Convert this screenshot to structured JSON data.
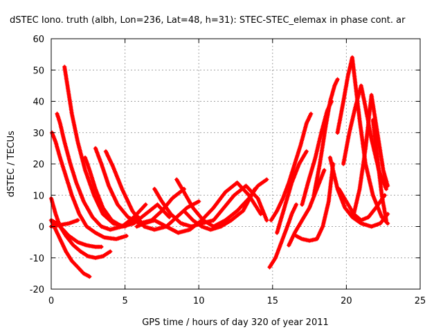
{
  "chart_data": {
    "type": "scatter",
    "title": "dSTEC Iono. truth (albh, Lon=236, Lat=48, h=31): STEC-STEC_elemax in phase cont. ar",
    "xlabel": "GPS time / hours of day 320 of year 2011",
    "ylabel": "dSTEC  / TECUs",
    "xlim": [
      0,
      25
    ],
    "ylim": [
      -20,
      60
    ],
    "xticks": [
      0,
      5,
      10,
      15,
      20,
      25
    ],
    "yticks": [
      -20,
      -10,
      0,
      10,
      20,
      30,
      40,
      50,
      60
    ],
    "grid": true,
    "marker": "+",
    "color": "#ff0000",
    "series": [
      {
        "x": [
          0.0,
          0.3,
          0.6,
          1.0,
          1.4,
          1.8,
          2.2,
          2.6
        ],
        "y": [
          2,
          -1,
          -4,
          -8,
          -11,
          -13,
          -15,
          -16
        ]
      },
      {
        "x": [
          0.0,
          0.3,
          0.6,
          1.0,
          1.5,
          2.0,
          2.5,
          3.0,
          3.5,
          4.0
        ],
        "y": [
          9,
          4,
          0,
          -3,
          -6,
          -8,
          -9.5,
          -10,
          -9.5,
          -8
        ]
      },
      {
        "x": [
          0.0,
          0.4,
          0.8,
          1.2,
          1.8,
          2.4,
          3.0,
          3.4
        ],
        "y": [
          2,
          1,
          -1,
          -3,
          -5,
          -6,
          -6.5,
          -6.5
        ]
      },
      {
        "x": [
          0.05,
          0.3,
          0.6,
          1.0,
          1.4,
          1.9,
          2.4,
          3.0,
          3.6,
          4.4,
          5.1
        ],
        "y": [
          30,
          27,
          22,
          16,
          10,
          4,
          0,
          -2,
          -3.5,
          -4,
          -3
        ]
      },
      {
        "x": [
          0.4,
          0.6,
          0.9,
          1.3,
          1.7,
          2.2,
          2.8,
          3.4,
          4.0,
          4.8,
          5.6,
          6.4
        ],
        "y": [
          36,
          33,
          27,
          20,
          14,
          8,
          3,
          0,
          -1,
          0,
          3,
          7
        ]
      },
      {
        "x": [
          0.9,
          1.1,
          1.4,
          1.8,
          2.3,
          2.9,
          3.5,
          4.2,
          5.0,
          5.9
        ],
        "y": [
          51,
          45,
          36,
          27,
          18,
          10,
          4,
          1,
          0,
          3
        ]
      },
      {
        "x": [
          2.3,
          2.6,
          3.0,
          3.5,
          4.1,
          4.8,
          5.6,
          6.4,
          7.2,
          8.0
        ],
        "y": [
          22,
          18,
          12,
          6,
          2,
          0,
          1,
          4,
          7,
          3
        ]
      },
      {
        "x": [
          3.0,
          3.4,
          3.9,
          4.5,
          5.2,
          6.0,
          6.8,
          7.5,
          8.2,
          9.0
        ],
        "y": [
          25,
          20,
          13,
          7,
          3,
          1,
          2,
          5,
          9,
          12
        ]
      },
      {
        "x": [
          3.7,
          4.2,
          4.8,
          5.5,
          6.3,
          7.0,
          7.8,
          8.5,
          9.2,
          10.0
        ],
        "y": [
          24,
          19,
          12,
          5,
          0,
          -1,
          0,
          3,
          6,
          8
        ]
      },
      {
        "x": [
          0.0,
          0.6,
          1.2,
          1.8
        ],
        "y": [
          0,
          0.5,
          1,
          2
        ]
      },
      {
        "x": [
          5.8,
          6.3,
          7.0,
          7.8,
          8.6,
          9.4,
          10.2,
          11.0,
          11.8,
          12.6,
          13.4,
          14.2
        ],
        "y": [
          0,
          1,
          2,
          0,
          -2,
          -1,
          2,
          6,
          11,
          14,
          10,
          4
        ]
      },
      {
        "x": [
          7.0,
          7.5,
          8.1,
          8.8,
          9.5,
          10.2,
          11.0,
          11.7,
          12.4,
          13.2,
          14.0,
          14.6
        ],
        "y": [
          12,
          8,
          4,
          1,
          0,
          1,
          2,
          6,
          10,
          13,
          9,
          2
        ]
      },
      {
        "x": [
          8.5,
          9.0,
          9.6,
          10.3,
          11.0,
          11.8,
          12.6,
          13.4,
          14.0,
          14.6
        ],
        "y": [
          15,
          11,
          6,
          2,
          0,
          2,
          5,
          9,
          13,
          15
        ]
      },
      {
        "x": [
          9.0,
          9.6,
          10.2,
          10.8,
          11.5,
          12.2,
          13.0,
          13.8
        ],
        "y": [
          5,
          2,
          0,
          -1,
          0,
          2,
          5,
          12
        ]
      },
      {
        "x": [
          14.8,
          15.2,
          15.6,
          16.0,
          16.3,
          16.6
        ],
        "y": [
          -13,
          -10,
          -5,
          0,
          4,
          7
        ]
      },
      {
        "x": [
          14.9,
          15.3,
          15.7,
          16.1,
          16.5,
          16.9,
          17.3,
          17.6
        ],
        "y": [
          2,
          5,
          9,
          14,
          20,
          26,
          33,
          36
        ]
      },
      {
        "x": [
          15.3,
          15.8,
          16.3,
          16.8,
          17.3
        ],
        "y": [
          -2,
          6,
          14,
          20,
          24
        ]
      },
      {
        "x": [
          16.1,
          16.5,
          17.0,
          17.5,
          18.0,
          18.5
        ],
        "y": [
          -6,
          -2,
          2,
          6,
          12,
          18
        ]
      },
      {
        "x": [
          16.6,
          17.0,
          17.5,
          18.0,
          18.4,
          18.8,
          19.1
        ],
        "y": [
          -3,
          -4,
          -4.5,
          -4,
          0,
          8,
          20
        ]
      },
      {
        "x": [
          17.0,
          17.4,
          17.9,
          18.3,
          18.7,
          19.0
        ],
        "y": [
          7,
          14,
          22,
          30,
          37,
          40
        ]
      },
      {
        "x": [
          17.8,
          18.2,
          18.6,
          18.9,
          19.2,
          19.4
        ],
        "y": [
          10,
          20,
          32,
          40,
          45,
          47
        ]
      },
      {
        "x": [
          18.9,
          19.4,
          19.9,
          20.4,
          21.0,
          21.7,
          22.3,
          22.8
        ],
        "y": [
          22,
          12,
          6,
          3,
          1,
          0,
          1,
          4
        ]
      },
      {
        "x": [
          19.4,
          19.8,
          20.1,
          20.4,
          20.6,
          20.9,
          21.3,
          21.8,
          22.4,
          22.8
        ],
        "y": [
          30,
          40,
          48,
          54,
          46,
          34,
          20,
          10,
          3,
          1
        ]
      },
      {
        "x": [
          19.8,
          20.2,
          20.6,
          21.0,
          21.3,
          21.7,
          22.2,
          22.7
        ],
        "y": [
          20,
          30,
          38,
          45,
          38,
          28,
          18,
          12
        ]
      },
      {
        "x": [
          20.5,
          20.9,
          21.3,
          21.7,
          22.1,
          22.5,
          22.8
        ],
        "y": [
          4,
          12,
          25,
          42,
          30,
          18,
          13
        ]
      },
      {
        "x": [
          19.5,
          20.0,
          20.5,
          21.0,
          21.5,
          22.0,
          22.6
        ],
        "y": [
          12,
          8,
          4,
          2,
          3,
          6,
          10
        ]
      },
      {
        "x": [
          21.8,
          22.1,
          22.4,
          22.7
        ],
        "y": [
          34,
          22,
          10,
          2
        ]
      }
    ]
  }
}
